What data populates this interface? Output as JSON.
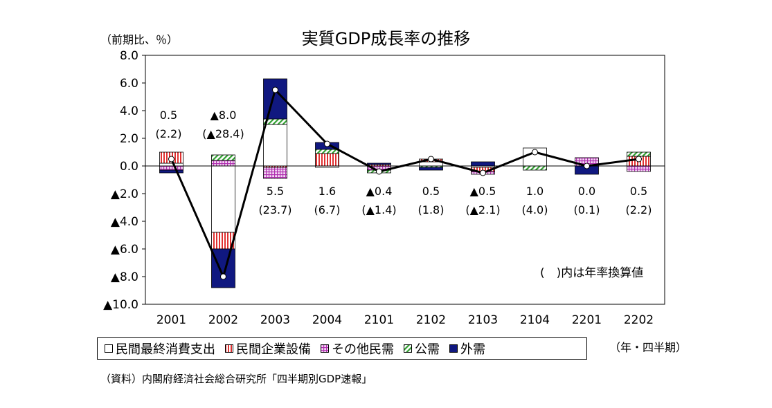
{
  "chart_data": {
    "type": "bar",
    "title": "実質GDP成長率の推移",
    "ylabel": "（前期比、％）",
    "xlabel": "（年・四半期）",
    "ylim": [
      -10,
      8
    ],
    "yticks": [
      {
        "value": 8,
        "label": "8.0"
      },
      {
        "value": 6,
        "label": "6.0"
      },
      {
        "value": 4,
        "label": "4.0"
      },
      {
        "value": 2,
        "label": "2.0"
      },
      {
        "value": 0,
        "label": "0.0"
      },
      {
        "value": -2,
        "label": "▲2.0"
      },
      {
        "value": -4,
        "label": "▲4.0"
      },
      {
        "value": -6,
        "label": "▲6.0"
      },
      {
        "value": -8,
        "label": "▲8.0"
      },
      {
        "value": -10,
        "label": "▲10.0"
      }
    ],
    "categories": [
      "2001",
      "2002",
      "2003",
      "2004",
      "2101",
      "2102",
      "2103",
      "2104",
      "2201",
      "2202"
    ],
    "series": [
      {
        "name": "民間最終消費支出",
        "kind": "stack",
        "color": "#ffffff",
        "pattern": "plain",
        "values": [
          0.2,
          -4.8,
          3.0,
          -0.1,
          0.0,
          0.3,
          -0.1,
          1.3,
          0.0,
          0.0
        ]
      },
      {
        "name": "民間企業設備",
        "kind": "stack",
        "color": "#e03030",
        "pattern": "vstripe",
        "values": [
          0.8,
          -1.2,
          -0.1,
          0.9,
          0.1,
          0.2,
          -0.3,
          0.0,
          0.0,
          0.7
        ]
      },
      {
        "name": "その他民需",
        "kind": "stack",
        "color": "#b030b0",
        "pattern": "grid",
        "values": [
          -0.3,
          0.4,
          -0.8,
          0.0,
          -0.3,
          0.0,
          -0.2,
          0.0,
          0.6,
          -0.4
        ]
      },
      {
        "name": "公需",
        "kind": "stack",
        "color": "#30a030",
        "pattern": "diag",
        "values": [
          0.0,
          0.4,
          0.4,
          0.3,
          -0.2,
          -0.1,
          0.0,
          -0.3,
          0.0,
          0.3
        ]
      },
      {
        "name": "外需",
        "kind": "stack",
        "color": "#101880",
        "pattern": "solid",
        "values": [
          -0.2,
          -2.8,
          2.9,
          0.5,
          0.1,
          -0.2,
          0.3,
          0.0,
          -0.6,
          0.0
        ]
      },
      {
        "name": "実質GDP",
        "kind": "line",
        "color": "#000000",
        "values": [
          0.5,
          -8.0,
          5.5,
          1.6,
          -0.4,
          0.5,
          -0.5,
          1.0,
          0.0,
          0.5
        ]
      }
    ],
    "data_labels": [
      {
        "category": "2001",
        "quarterly": "0.5",
        "annualized": "(2.2)"
      },
      {
        "category": "2002",
        "quarterly": "▲8.0",
        "annualized": "(▲28.4)"
      },
      {
        "category": "2003",
        "quarterly": "5.5",
        "annualized": "(23.7)"
      },
      {
        "category": "2004",
        "quarterly": "1.6",
        "annualized": "(6.7)"
      },
      {
        "category": "2101",
        "quarterly": "▲0.4",
        "annualized": "(▲1.4)"
      },
      {
        "category": "2102",
        "quarterly": "0.5",
        "annualized": "(1.8)"
      },
      {
        "category": "2103",
        "quarterly": "▲0.5",
        "annualized": "(▲2.1)"
      },
      {
        "category": "2104",
        "quarterly": "1.0",
        "annualized": "(4.0)"
      },
      {
        "category": "2201",
        "quarterly": "0.0",
        "annualized": "(0.1)"
      },
      {
        "category": "2202",
        "quarterly": "0.5",
        "annualized": "(2.2)"
      }
    ],
    "legend_position": "bottom",
    "grid": false
  },
  "annotations": {
    "annual_note": "(　)内は年率換算値",
    "source": "（資料）内閣府経済社会総合研究所「四半期別GDP速報」"
  }
}
